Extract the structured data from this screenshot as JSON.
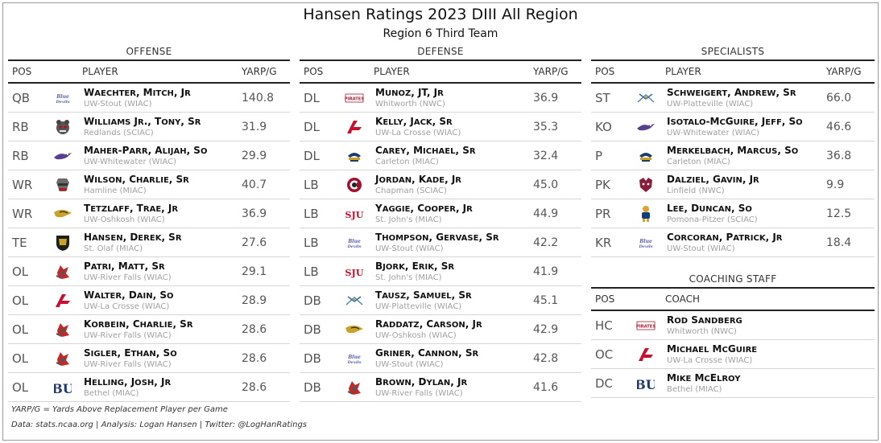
{
  "title": "Hansen Ratings 2023 DIII All Region",
  "subtitle": "Region 6 Third Team",
  "offense": {
    "heading": "OFFENSE",
    "headers": {
      "pos": "POS",
      "player": "PLAYER",
      "val": "YARP/G"
    },
    "rows": [
      {
        "pos": "QB",
        "player": "Waechter, Mitch, Jr",
        "team": "UW-Stout (WIAC)",
        "val": "140.8",
        "logo": "stout-logo"
      },
      {
        "pos": "RB",
        "player": "Williams Jr., Tony, Sr",
        "team": "Redlands (SCIAC)",
        "val": "31.9",
        "logo": "redlands-logo"
      },
      {
        "pos": "RB",
        "player": "Maher-Parr, Alijah, So",
        "team": "UW-Whitewater (WIAC)",
        "val": "29.9",
        "logo": "whitewater-logo"
      },
      {
        "pos": "WR",
        "player": "Wilson, Charlie, Sr",
        "team": "Hamline (MIAC)",
        "val": "40.7",
        "logo": "hamline-logo"
      },
      {
        "pos": "WR",
        "player": "Tetzlaff, Trae, Jr",
        "team": "UW-Oshkosh (WIAC)",
        "val": "36.9",
        "logo": "oshkosh-logo"
      },
      {
        "pos": "TE",
        "player": "Hansen, Derek, Sr",
        "team": "St. Olaf (MIAC)",
        "val": "27.6",
        "logo": "stolaf-logo"
      },
      {
        "pos": "OL",
        "player": "Patri, Matt, Sr",
        "team": "UW-River Falls (WIAC)",
        "val": "29.1",
        "logo": "riverfalls-logo"
      },
      {
        "pos": "OL",
        "player": "Walter, Dain, So",
        "team": "UW-La Crosse (WIAC)",
        "val": "28.9",
        "logo": "lacrosse-logo"
      },
      {
        "pos": "OL",
        "player": "Korbein, Charlie, Sr",
        "team": "UW-River Falls (WIAC)",
        "val": "28.6",
        "logo": "riverfalls-logo"
      },
      {
        "pos": "OL",
        "player": "Sigler, Ethan, So",
        "team": "UW-River Falls (WIAC)",
        "val": "28.6",
        "logo": "riverfalls-logo"
      },
      {
        "pos": "OL",
        "player": "Helling, Josh, Jr",
        "team": "Bethel (MIAC)",
        "val": "28.6",
        "logo": "bethel-logo"
      }
    ]
  },
  "defense": {
    "heading": "DEFENSE",
    "headers": {
      "pos": "POS",
      "player": "PLAYER",
      "val": "YARP/G"
    },
    "rows": [
      {
        "pos": "DL",
        "player": "Munoz, JT, Jr",
        "team": "Whitworth (NWC)",
        "val": "36.9",
        "logo": "whitworth-logo"
      },
      {
        "pos": "DL",
        "player": "Kelly, Jack, Sr",
        "team": "UW-La Crosse (WIAC)",
        "val": "35.3",
        "logo": "lacrosse-logo"
      },
      {
        "pos": "DL",
        "player": "Carey, Michael, Sr",
        "team": "Carleton (MIAC)",
        "val": "32.4",
        "logo": "carleton-logo"
      },
      {
        "pos": "LB",
        "player": "Jordan, Kade, Jr",
        "team": "Chapman (SCIAC)",
        "val": "45.0",
        "logo": "chapman-logo"
      },
      {
        "pos": "LB",
        "player": "Yaggie, Cooper, Jr",
        "team": "St. John's (MIAC)",
        "val": "44.9",
        "logo": "sju-logo"
      },
      {
        "pos": "LB",
        "player": "Thompson, Gervase, Sr",
        "team": "UW-Stout (WIAC)",
        "val": "42.2",
        "logo": "stout-logo"
      },
      {
        "pos": "LB",
        "player": "Bjork, Erik, Sr",
        "team": "St. John's (MIAC)",
        "val": "41.9",
        "logo": "sju-logo"
      },
      {
        "pos": "DB",
        "player": "Tausz, Samuel, Sr",
        "team": "UW-Platteville (WIAC)",
        "val": "45.1",
        "logo": "platteville-logo"
      },
      {
        "pos": "DB",
        "player": "Raddatz, Carson, Jr",
        "team": "UW-Oshkosh (WIAC)",
        "val": "42.9",
        "logo": "oshkosh-logo"
      },
      {
        "pos": "DB",
        "player": "Griner, Cannon, Sr",
        "team": "UW-Stout (WIAC)",
        "val": "42.8",
        "logo": "stout-logo"
      },
      {
        "pos": "DB",
        "player": "Brown, Dylan, Jr",
        "team": "UW-River Falls (WIAC)",
        "val": "41.6",
        "logo": "riverfalls-logo"
      }
    ]
  },
  "specialists": {
    "heading": "SPECIALISTS",
    "headers": {
      "pos": "POS",
      "player": "PLAYER",
      "val": "YARP/G"
    },
    "rows": [
      {
        "pos": "ST",
        "player": "Schweigert, Andrew, Sr",
        "team": "UW-Platteville (WIAC)",
        "val": "66.0",
        "logo": "platteville-logo"
      },
      {
        "pos": "KO",
        "player": "Isotalo-McGuire, Jeff, So",
        "team": "UW-Whitewater (WIAC)",
        "val": "46.6",
        "logo": "whitewater-logo"
      },
      {
        "pos": "P",
        "player": "Merkelbach, Marcus, So",
        "team": "Carleton (MIAC)",
        "val": "36.8",
        "logo": "carleton-logo"
      },
      {
        "pos": "PK",
        "player": "Dalziel, Gavin, Jr",
        "team": "Linfield (NWC)",
        "val": "9.9",
        "logo": "linfield-logo"
      },
      {
        "pos": "PR",
        "player": "Lee, Duncan, So",
        "team": "Pomona-Pitzer (SCIAC)",
        "val": "12.5",
        "logo": "pomona-logo"
      },
      {
        "pos": "KR",
        "player": "Corcoran, Patrick, Jr",
        "team": "UW-Stout (WIAC)",
        "val": "18.4",
        "logo": "stout-logo"
      }
    ]
  },
  "coaching": {
    "heading": "COACHING STAFF",
    "headers": {
      "pos": "POS",
      "player": "COACH"
    },
    "rows": [
      {
        "pos": "HC",
        "player": "Rod Sandberg",
        "team": "Whitworth (NWC)",
        "logo": "whitworth-logo"
      },
      {
        "pos": "OC",
        "player": "Michael McGuire",
        "team": "UW-La Crosse (WIAC)",
        "logo": "lacrosse-logo"
      },
      {
        "pos": "DC",
        "player": "Mike McElroy",
        "team": "Bethel (MIAC)",
        "logo": "bethel-logo"
      }
    ]
  },
  "footnote1": "YARP/G = Yards Above Replacement Player per Game",
  "footnote2": "Data: stats.ncaa.org | Analysis: Logan Hansen | Twitter: @LogHanRatings",
  "logo_text": {
    "stout": "Blue Devils",
    "whitworth": "PIRATES",
    "sju": "SJU",
    "bethel": "BU"
  },
  "colors": {
    "rule": "#222222",
    "row_border": "#d6d6d6",
    "team_text": "#a0a0a0"
  }
}
